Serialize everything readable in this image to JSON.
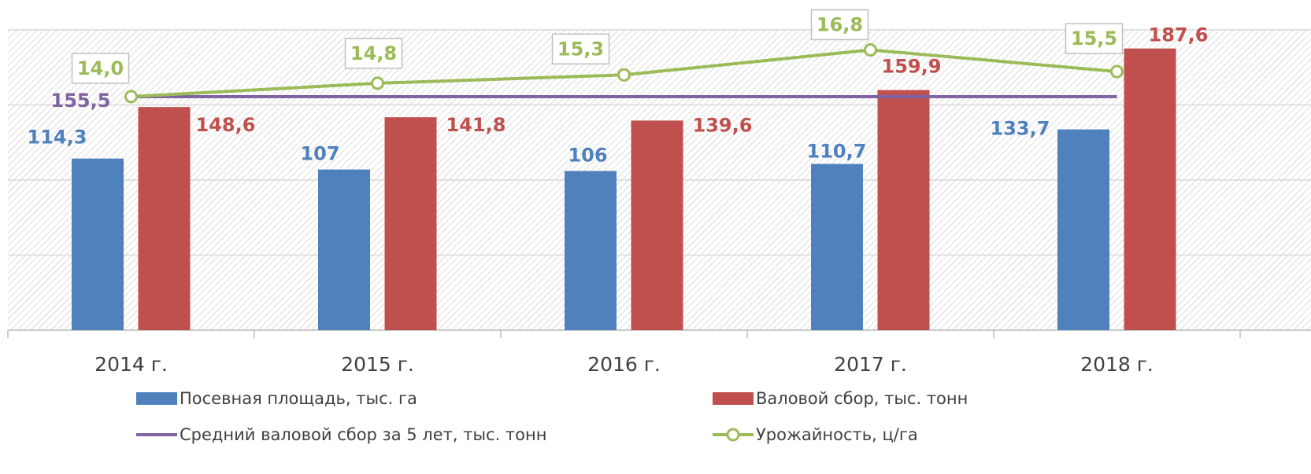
{
  "chart_data": {
    "type": "bar",
    "categories": [
      "2014 г.",
      "2015 г.",
      "2016 г.",
      "2017 г.",
      "2018 г."
    ],
    "ylim": [
      0,
      200
    ],
    "yticks": [
      0,
      50,
      100,
      150,
      200
    ],
    "y2lim": [
      0,
      18
    ],
    "grid": true,
    "legend": "bottom",
    "series": [
      {
        "name": "Посевная площадь, тыс. га",
        "type": "bar",
        "color": "#4f81bd",
        "values": [
          114.3,
          107,
          106,
          110.7,
          133.7
        ],
        "value_labels": [
          "114,3",
          "107",
          "106",
          "110,7",
          "133,7"
        ]
      },
      {
        "name": "Валовой сбор, тыс. тонн",
        "type": "bar",
        "color": "#c0504d",
        "values": [
          148.6,
          141.8,
          139.6,
          159.9,
          187.6
        ],
        "value_labels": [
          "148,6",
          "141,8",
          "139,6",
          "159,9",
          "187,6"
        ]
      },
      {
        "name": "Средний валовой сбор за 5 лет, тыс. тонн",
        "type": "line",
        "color": "#8064a2",
        "values": [
          155.5,
          155.5,
          155.5,
          155.5,
          155.5
        ],
        "value_labels": [
          "155,5",
          null,
          null,
          null,
          null
        ]
      },
      {
        "name": "Урожайность, ц/га",
        "type": "line",
        "axis": "y2",
        "marker": "circle",
        "color": "#9bbb59",
        "values": [
          14.0,
          14.8,
          15.3,
          16.8,
          15.5
        ],
        "value_labels": [
          "14,0",
          "14,8",
          "15,3",
          "16,8",
          "15,5"
        ]
      }
    ]
  }
}
